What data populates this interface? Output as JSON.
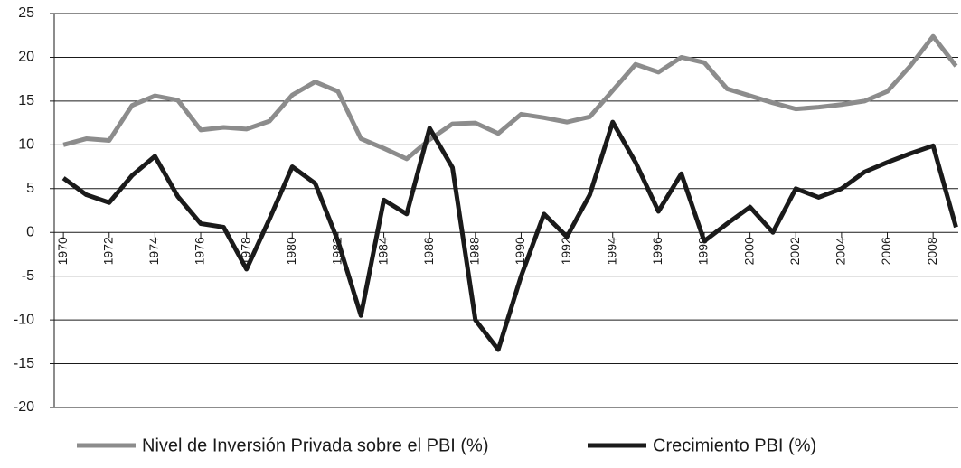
{
  "chart_data": {
    "type": "line",
    "x": [
      1970,
      1971,
      1972,
      1973,
      1974,
      1975,
      1976,
      1977,
      1978,
      1979,
      1980,
      1981,
      1982,
      1983,
      1984,
      1985,
      1986,
      1987,
      1988,
      1989,
      1990,
      1991,
      1992,
      1993,
      1994,
      1995,
      1996,
      1997,
      1998,
      1999,
      2000,
      2001,
      2002,
      2003,
      2004,
      2005,
      2006,
      2007,
      2008,
      2009
    ],
    "xlim": [
      1969.6,
      2009.1
    ],
    "xticks": [
      1970,
      1972,
      1974,
      1976,
      1978,
      1980,
      1982,
      1984,
      1986,
      1988,
      1990,
      1992,
      1994,
      1996,
      1998,
      2000,
      2002,
      2004,
      2006,
      2008
    ],
    "ylim": [
      -20,
      25
    ],
    "yticks": [
      -20,
      -15,
      -10,
      -5,
      0,
      5,
      10,
      15,
      20,
      25
    ],
    "grid": true,
    "legend": "bottom",
    "series": [
      {
        "name": "Nivel de Inversión Privada sobre el PBI (%)",
        "color": "#8c8c8c",
        "values": [
          10.0,
          10.7,
          10.5,
          14.5,
          15.6,
          15.1,
          11.7,
          12.0,
          11.8,
          12.7,
          15.7,
          17.2,
          16.1,
          10.7,
          9.6,
          8.4,
          10.6,
          12.4,
          12.5,
          11.3,
          13.5,
          13.1,
          12.6,
          13.2,
          16.2,
          19.2,
          18.3,
          20.0,
          19.4,
          16.4,
          15.6,
          14.8,
          14.1,
          14.3,
          14.6,
          15.0,
          16.1,
          19.0,
          22.4,
          19.0
        ]
      },
      {
        "name": "Crecimiento PBI (%)",
        "color": "#1a1a1a",
        "values": [
          6.2,
          4.3,
          3.4,
          6.5,
          8.7,
          4.1,
          1.0,
          0.6,
          -4.2,
          1.5,
          7.5,
          5.6,
          -1.0,
          -9.5,
          3.7,
          2.1,
          11.9,
          7.4,
          -10.0,
          -13.4,
          -5.0,
          2.1,
          -0.5,
          4.3,
          12.6,
          8.0,
          2.4,
          6.7,
          -1.0,
          1.0,
          2.9,
          0.0,
          5.0,
          4.0,
          5.0,
          6.9,
          8.0,
          9.0,
          9.9,
          0.6
        ]
      }
    ]
  }
}
